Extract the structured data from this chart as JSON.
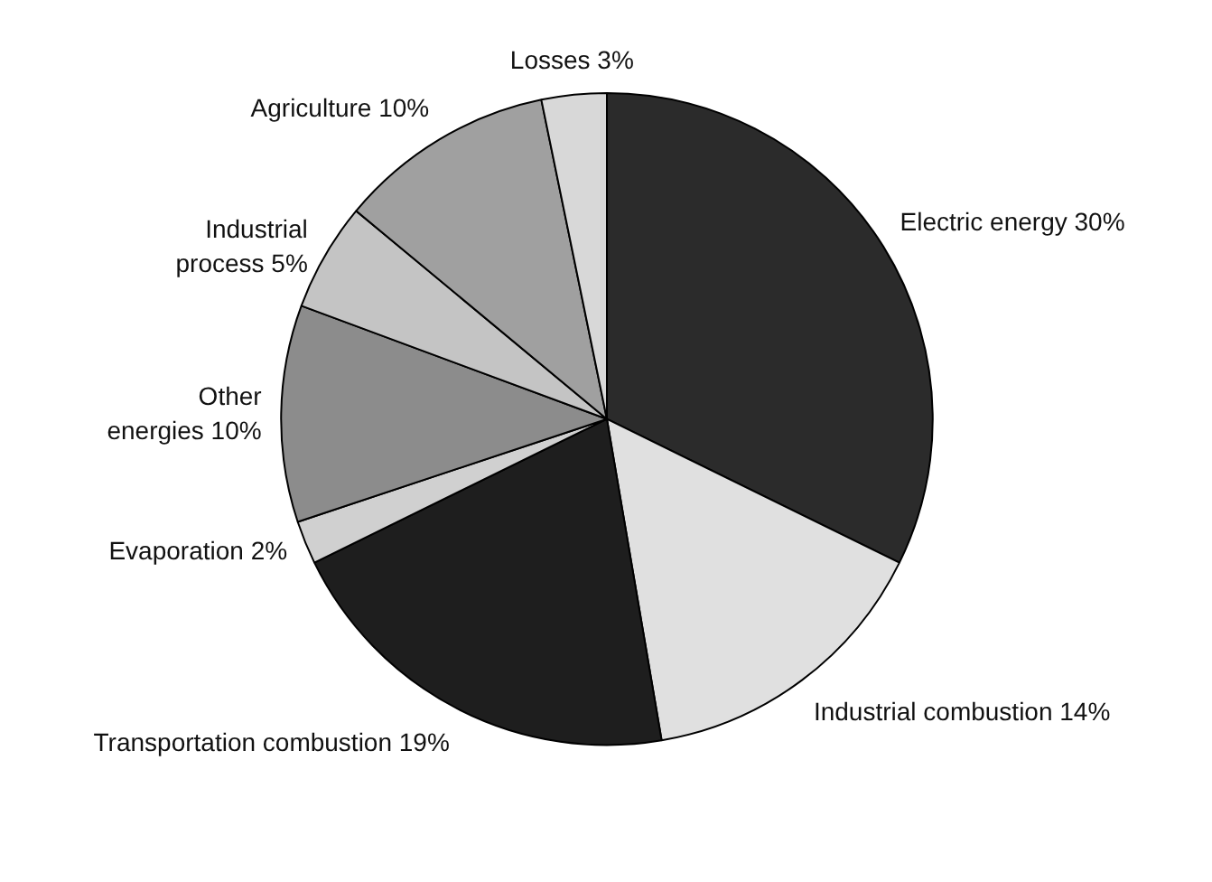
{
  "chart_data": {
    "type": "pie",
    "categories": [
      "Electric energy",
      "Industrial combustion",
      "Transportation combustion",
      "Evaporation",
      "Other energies",
      "Industrial process",
      "Agriculture",
      "Losses"
    ],
    "values": [
      30,
      14,
      19,
      2,
      10,
      5,
      10,
      3
    ],
    "value_labels": [
      "30%",
      "14%",
      "19%",
      "2%",
      "10%",
      "5%",
      "10%",
      "3%"
    ],
    "colors": [
      "#2b2b2b",
      "#e0e0e0",
      "#1e1e1e",
      "#d0d0d0",
      "#8c8c8c",
      "#c4c4c4",
      "#a0a0a0",
      "#d8d8d8"
    ]
  }
}
